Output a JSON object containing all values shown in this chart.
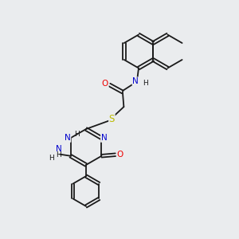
{
  "bg_color": "#eaecee",
  "bond_color": "#1a1a1a",
  "atom_colors": {
    "N": "#0000cc",
    "O": "#ee0000",
    "S": "#bbbb00",
    "C": "#1a1a1a",
    "H": "#1a1a1a"
  },
  "font_size_atom": 7.5,
  "font_size_h": 6.5,
  "line_width": 1.3
}
